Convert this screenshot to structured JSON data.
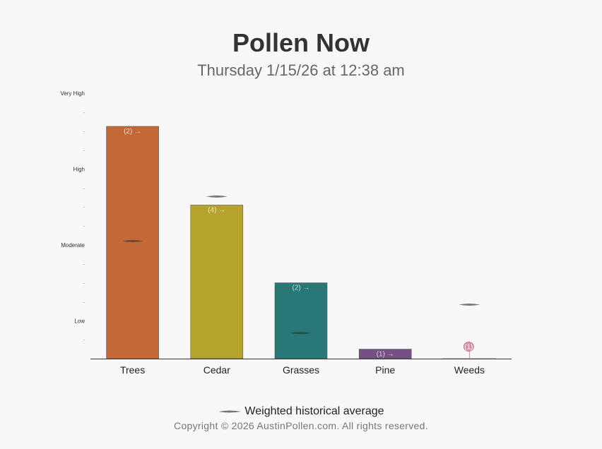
{
  "header": {
    "title": "Pollen Now",
    "subtitle": "Thursday 1/15/26 at 12:38 am"
  },
  "legend": {
    "label": "Weighted historical average"
  },
  "footer": {
    "copyright": "Copyright © 2026 AustinPollen.com.  All rights reserved."
  },
  "chart_data": {
    "type": "bar",
    "title": "Pollen Now",
    "subtitle": "Thursday 1/15/26 at 12:38 am",
    "xlabel": "",
    "ylabel": "",
    "ylim": [
      0,
      14
    ],
    "y_ticks": [
      {
        "value": 0,
        "label": ""
      },
      {
        "value": 1,
        "label": "-"
      },
      {
        "value": 2,
        "label": "Low"
      },
      {
        "value": 3,
        "label": "-"
      },
      {
        "value": 4,
        "label": "-"
      },
      {
        "value": 5,
        "label": "-"
      },
      {
        "value": 6,
        "label": "Moderate"
      },
      {
        "value": 7,
        "label": "-"
      },
      {
        "value": 8,
        "label": "-"
      },
      {
        "value": 9,
        "label": "-"
      },
      {
        "value": 10,
        "label": "High"
      },
      {
        "value": 11,
        "label": "-"
      },
      {
        "value": 12,
        "label": "-"
      },
      {
        "value": 13,
        "label": "-"
      },
      {
        "value": 14,
        "label": "Very High"
      }
    ],
    "categories": [
      "Trees",
      "Cedar",
      "Grasses",
      "Pine",
      "Weeds"
    ],
    "values": [
      12.25,
      8.1,
      4.0,
      0.5,
      0.05
    ],
    "counts": [
      "(2) →",
      "(4) →",
      "(2) →",
      "(1) →",
      "(1)"
    ],
    "historical_average": [
      6.2,
      8.55,
      1.35,
      null,
      2.85
    ],
    "colors": [
      "#c36837",
      "#b6a32e",
      "#277876",
      "#764f85",
      "#d493a8"
    ],
    "grid": false,
    "legend_position": "bottom"
  }
}
